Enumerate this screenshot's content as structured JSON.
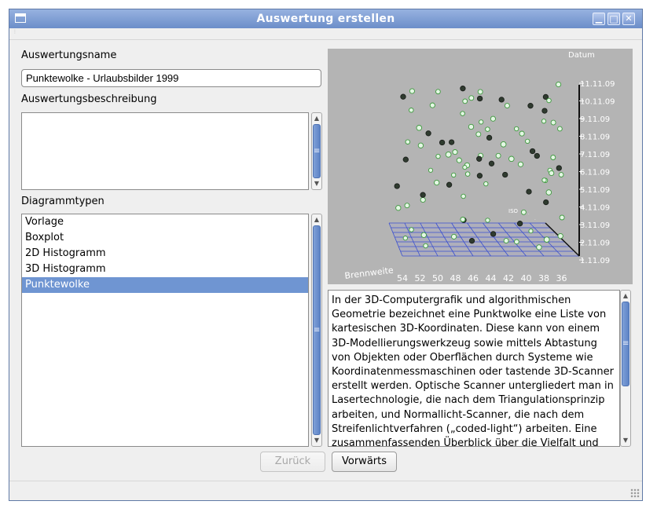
{
  "window": {
    "title": "Auswertung erstellen"
  },
  "form": {
    "name_label": "Auswertungsname",
    "name_value": "Punktewolke - Urlaubsbilder 1999",
    "description_label": "Auswertungsbeschreibung",
    "description_value": "",
    "diagram_types_label": "Diagrammtypen",
    "diagram_types": [
      {
        "label": "Vorlage",
        "selected": false
      },
      {
        "label": "Boxplot",
        "selected": false
      },
      {
        "label": "2D Histogramm",
        "selected": false
      },
      {
        "label": "3D Histogramm",
        "selected": false
      },
      {
        "label": "Punktewolke",
        "selected": true
      }
    ]
  },
  "preview": {
    "axis_z_title": "Datum",
    "axis_z_ticks": [
      "11.11.09",
      "10.11.09",
      "9.11.09",
      "8.11.09",
      "7.11.09",
      "6.11.09",
      "5.11.09",
      "4.11.09",
      "3.11.09",
      "2.11.09",
      "1.11.09"
    ],
    "axis_x_title": "Brennweite",
    "axis_x_ticks": [
      "54",
      "52",
      "50",
      "48",
      "46",
      "44",
      "42",
      "40",
      "38",
      "36"
    ],
    "axis_y_title": "ISO",
    "background": "#b4b4b4",
    "grid_color": "#3a4fd0"
  },
  "description_text": "In der 3D-Computergrafik und algorithmischen Geometrie bezeichnet eine Punktwolke eine Liste von kartesischen 3D-Koordinaten. Diese kann von einem 3D-Modellierungswerkzeug sowie mittels Abtastung von Objekten oder Oberflächen durch Systeme wie Koordinatenmessmaschinen oder tastende 3D-Scanner erstellt werden. Optische Scanner untergliedert man in Lasertechnologie, die nach dem Triangulationsprinzip arbeiten, und Normallicht-Scanner, die nach dem Streifenlichtverfahren („coded-light“) arbeiten. Eine zusammenfassenden Überblick über die Vielfalt und",
  "buttons": {
    "back": "Zurück",
    "next": "Vorwärts"
  },
  "colors": {
    "title_bar": "#7b9bd1",
    "selection": "#6f95d2",
    "point_light": "#e4f7e4",
    "point_dark": "#2f3b2f"
  }
}
